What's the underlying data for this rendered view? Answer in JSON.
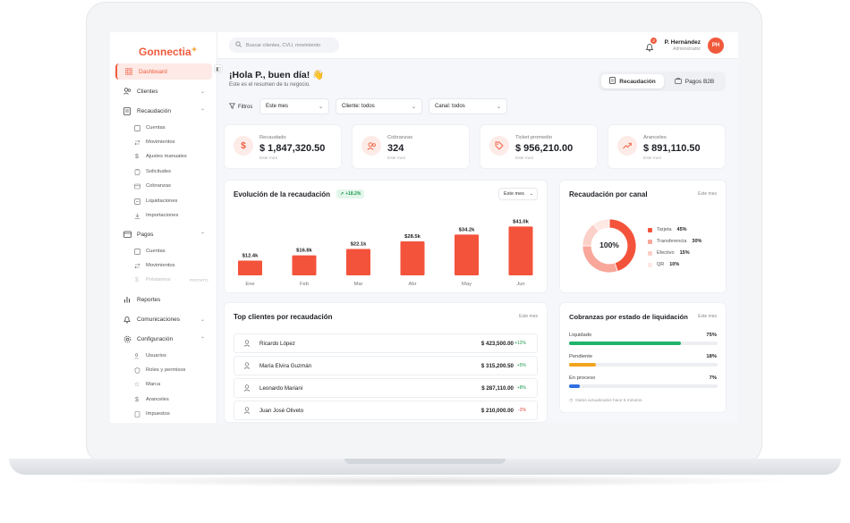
{
  "brand": {
    "name": "Gonnectia",
    "accent": "#f05a3c"
  },
  "sidebar": {
    "items": [
      {
        "label": "Dashboard",
        "icon": "grid-icon",
        "active": true
      },
      {
        "label": "Clientes",
        "icon": "users-icon"
      },
      {
        "label": "Recaudación",
        "icon": "receipt-icon"
      },
      {
        "label": "Pagos",
        "icon": "wallet-icon"
      },
      {
        "label": "Reportes",
        "icon": "chart-icon"
      },
      {
        "label": "Comunicaciones",
        "icon": "bell-icon"
      },
      {
        "label": "Configuración",
        "icon": "gear-icon"
      }
    ],
    "recaudacion_sub": [
      "Cuentas",
      "Movimientos",
      "Ajustes manuales",
      "Solicitudes",
      "Cobranzas",
      "Liquidaciones",
      "Importaciones"
    ],
    "pagos_sub": [
      "Cuentas",
      "Movimientos",
      "Préstamos"
    ],
    "pagos_soon": "PRONTO",
    "config_sub": [
      "Usuarios",
      "Roles y permisos",
      "Marca",
      "Aranceles",
      "Impuestos"
    ]
  },
  "header": {
    "search_placeholder": "Buscar clientes, CVU, movimiento",
    "notifications": "2",
    "user_name": "P. Hernández",
    "user_role": "Administrador",
    "avatar_initials": "PH"
  },
  "greeting": {
    "title": "¡Hola P., buen día! 👋",
    "subtitle": "Este es el resumen de tu negocio."
  },
  "view_toggle": {
    "recaudacion": "Recaudación",
    "b2b": "Pagos B2B"
  },
  "filters": {
    "label": "Filtros",
    "period": "Este mes",
    "client": "Cliente: todos",
    "channel": "Canal: todos"
  },
  "kpis": [
    {
      "label": "Recaudado",
      "value": "$ 1,847,320.50",
      "period": "Este mes",
      "icon": "dollar-icon"
    },
    {
      "label": "Cobranzas",
      "value": "324",
      "period": "Este mes",
      "icon": "users-icon"
    },
    {
      "label": "Ticket promedio",
      "value": "$ 956,210.00",
      "period": "Este mes",
      "icon": "tag-icon"
    },
    {
      "label": "Aranceles",
      "value": "$ 891,110.50",
      "period": "Este mes",
      "icon": "trend-up-icon"
    }
  ],
  "evolution": {
    "title": "Evolución de la recaudación",
    "trend": "+18.2%",
    "period": "Este mes"
  },
  "chart_data": {
    "type": "bar",
    "categories": [
      "Ene",
      "Feb",
      "Mar",
      "Abr",
      "May",
      "Jun"
    ],
    "values": [
      12.4,
      16.8,
      22.1,
      28.5,
      34.2,
      41.0
    ],
    "data_labels": [
      "$12.4k",
      "$16.8k",
      "$22.1k",
      "$28.5k",
      "$34.2k",
      "$41.0k"
    ],
    "color": "#f4533b"
  },
  "channels": {
    "title": "Recaudación por canal",
    "period": "Este mes",
    "center_label": "100%",
    "items": [
      {
        "name": "Tarjeta",
        "pct": "45%",
        "value": 45,
        "color": "#f4533b"
      },
      {
        "name": "Transferencia",
        "pct": "30%",
        "value": 30,
        "color": "#f8a79a"
      },
      {
        "name": "Efectivo",
        "pct": "15%",
        "value": 15,
        "color": "#fbd0c8"
      },
      {
        "name": "QR",
        "pct": "10%",
        "value": 10,
        "color": "#fde8e3"
      }
    ]
  },
  "top_clients": {
    "title": "Top clientes por recaudación",
    "period": "Este mes",
    "rows": [
      {
        "name": "Ricardo López",
        "amount": "$ 423,500.00",
        "delta": "+12%",
        "positive": true
      },
      {
        "name": "María Elvira Guzmán",
        "amount": "$ 315,200.50",
        "delta": "+5%",
        "positive": true
      },
      {
        "name": "Leonardo Mariani",
        "amount": "$ 287,110.00",
        "delta": "+8%",
        "positive": true
      },
      {
        "name": "Juan José Oliveto",
        "amount": "$ 210,000.00",
        "delta": "-2%",
        "positive": false
      }
    ]
  },
  "liquidation": {
    "title": "Cobranzas por estado de liquidación",
    "period": "Este mes",
    "items": [
      {
        "label": "Liquidado",
        "pct": "75%",
        "value": 0.75,
        "color": "#20b36b"
      },
      {
        "label": "Pendiente",
        "pct": "18%",
        "value": 0.18,
        "color": "#f2a41c"
      },
      {
        "label": "En proceso",
        "pct": "7%",
        "value": 0.07,
        "color": "#2f6fe0"
      }
    ],
    "note": "Datos actualizados hace 5 minutos"
  }
}
